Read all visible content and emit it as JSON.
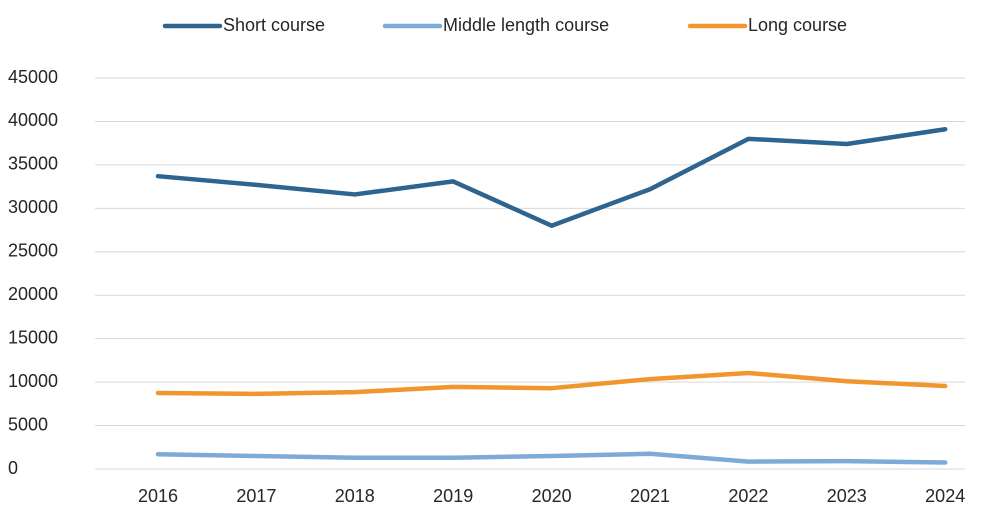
{
  "chart_data": {
    "type": "line",
    "categories": [
      "2016",
      "2017",
      "2018",
      "2019",
      "2020",
      "2021",
      "2022",
      "2023",
      "2024"
    ],
    "series": [
      {
        "name": "Short course",
        "color": "#2e6590",
        "values": [
          33700,
          32700,
          31600,
          33100,
          28000,
          32200,
          38000,
          37400,
          39100
        ]
      },
      {
        "name": "Middle length course",
        "color": "#7eaad8",
        "values": [
          1700,
          1500,
          1300,
          1300,
          1500,
          1750,
          850,
          900,
          750
        ]
      },
      {
        "name": "Long course",
        "color": "#f0962e",
        "values": [
          8750,
          8650,
          8850,
          9450,
          9300,
          10350,
          11050,
          10100,
          9550
        ]
      }
    ],
    "ylim": [
      0,
      45000
    ],
    "yticks": [
      0,
      5000,
      10000,
      15000,
      20000,
      25000,
      30000,
      35000,
      40000,
      45000
    ],
    "grid": true,
    "legend": "top"
  }
}
